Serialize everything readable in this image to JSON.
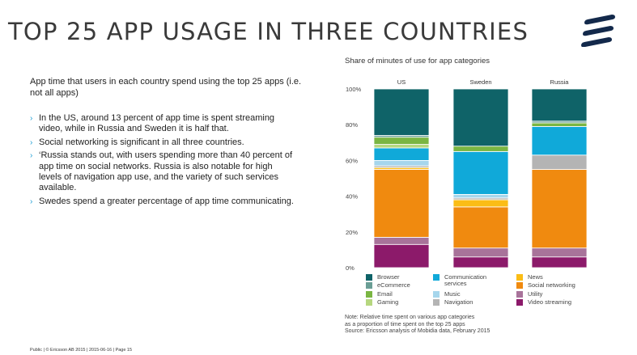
{
  "slide": {
    "title": "TOP 25 APP USAGE IN THREE COUNTRIES",
    "intro": "App time that users in each country spend using the top 25 apps (i.e. not all apps)",
    "bullets": [
      "In the US, around 13 percent of app time is spent streaming video, while in Russia and Sweden it is half that.",
      "Social networking is significant in all three countries.",
      "‘Russia stands out, with users spending more than 40 percent of app time on social networks. Russia is also notable for high levels of navigation app use, and the variety of such services available.",
      "Swedes spend a greater percentage of app time communicating."
    ],
    "bullet_icon": "chevron-right-icon",
    "accent_color": "#1d9fd4",
    "chart_title": "Share of minutes of use for app categories",
    "note_lines": [
      "Note: Relative time spent on various app categories",
      "as a proportion of time spent on the top 25 apps",
      "Source: Ericsson analysis of Mobidia data, February 2015"
    ],
    "footer": "Public  |  © Ericsson AB 2015  |  2015-06-16  |  Page 15",
    "logo_icon": "ericsson-logo-icon"
  },
  "chart_data": {
    "type": "bar",
    "stacked": true,
    "categories": [
      "US",
      "Sweden",
      "Russia"
    ],
    "y_ticks": [
      "0%",
      "20%",
      "40%",
      "60%",
      "80%",
      "100%"
    ],
    "ylim": [
      0,
      100
    ],
    "grid": false,
    "legend_position": "bottom",
    "series": [
      {
        "name": "Video streaming",
        "color": "#8c1a6a",
        "values": [
          13,
          6,
          6
        ]
      },
      {
        "name": "Utility",
        "color": "#a8739a",
        "values": [
          4,
          5,
          5
        ]
      },
      {
        "name": "Social networking",
        "color": "#f08a0f",
        "values": [
          38,
          23,
          44
        ]
      },
      {
        "name": "News",
        "color": "#fbbd16",
        "values": [
          1,
          4,
          0
        ]
      },
      {
        "name": "Navigation",
        "color": "#b4b4b4",
        "values": [
          1,
          1,
          8
        ]
      },
      {
        "name": "Music",
        "color": "#a6d6ec",
        "values": [
          3,
          2,
          0
        ]
      },
      {
        "name": "Communication\nservices",
        "color": "#10a9d9",
        "values": [
          7,
          24,
          16
        ]
      },
      {
        "name": "Gaming",
        "color": "#b6d77f",
        "values": [
          2,
          0,
          0
        ]
      },
      {
        "name": "Email",
        "color": "#7ab642",
        "values": [
          4,
          3,
          2
        ]
      },
      {
        "name": "eCommerce",
        "color": "#6a9e95",
        "values": [
          1,
          0,
          1
        ]
      },
      {
        "name": "Browser",
        "color": "#0f6368",
        "values": [
          26,
          32,
          18
        ]
      }
    ],
    "legend_order": [
      "Browser",
      "eCommerce",
      "Email",
      "Gaming",
      "Communication\nservices",
      "Music",
      "Navigation",
      "News",
      "Social networking",
      "Utility",
      "Video streaming"
    ]
  }
}
